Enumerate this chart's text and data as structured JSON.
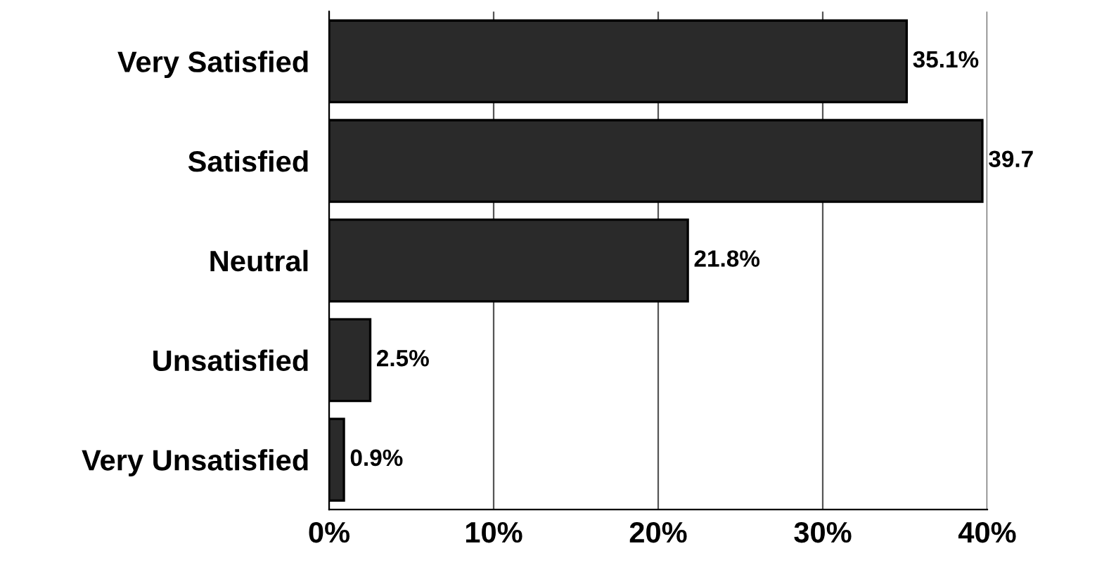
{
  "chart_data": {
    "type": "bar",
    "orientation": "horizontal",
    "categories": [
      "Very Satisfied",
      "Satisfied",
      "Neutral",
      "Unsatisfied",
      "Very Unsatisfied"
    ],
    "values": [
      35.1,
      39.7,
      21.8,
      2.5,
      0.9
    ],
    "value_labels": [
      "35.1%",
      "39.7",
      "21.8%",
      "2.5%",
      "0.9%"
    ],
    "color": "#2a2a2a",
    "xlim": [
      0,
      40
    ],
    "xticks": [
      {
        "value": 0,
        "label": "0%"
      },
      {
        "value": 10,
        "label": "10%"
      },
      {
        "value": 20,
        "label": "20%"
      },
      {
        "value": 30,
        "label": "30%"
      },
      {
        "value": 40,
        "label": "40%"
      }
    ],
    "grid": "x",
    "legend": false
  }
}
